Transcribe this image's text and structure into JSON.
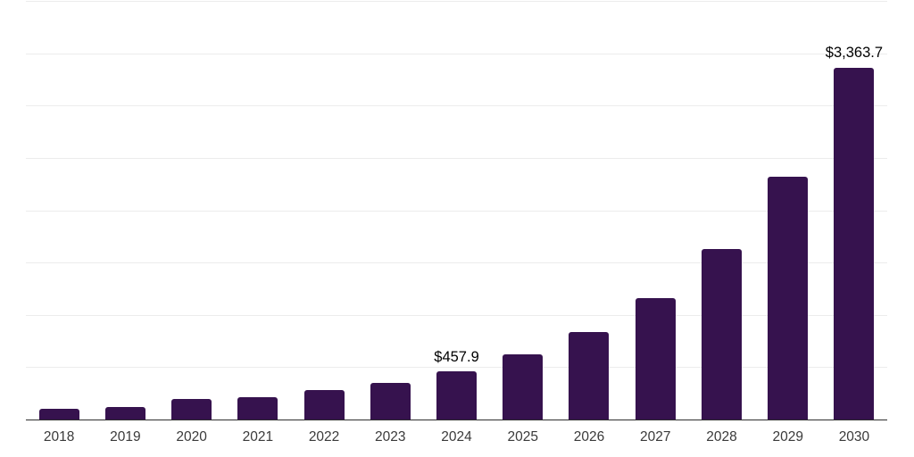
{
  "chart_data": {
    "type": "bar",
    "title": "",
    "xlabel": "",
    "ylabel": "",
    "categories": [
      "2018",
      "2019",
      "2020",
      "2021",
      "2022",
      "2023",
      "2024",
      "2025",
      "2026",
      "2027",
      "2028",
      "2029",
      "2030"
    ],
    "values": [
      100,
      120,
      200,
      215,
      278,
      350,
      457.9,
      620,
      840,
      1165,
      1630,
      2325,
      3363.7
    ],
    "data_labels": [
      "",
      "",
      "",
      "",
      "",
      "",
      "$457.9",
      "",
      "",
      "",
      "",
      "",
      "$3,363.7"
    ],
    "ylim": [
      0,
      4000
    ],
    "gridline_interval": 500,
    "grid": "horizontal",
    "y_tick_labels_visible": false,
    "legend": "none"
  },
  "styles": {
    "bar_color": "#36124E",
    "gridline_color": "#ececec",
    "axis_color": "#2e2e2e",
    "value_label_color": "#000000",
    "year_label_color": "#3a3a3a",
    "background_color": "#ffffff"
  }
}
